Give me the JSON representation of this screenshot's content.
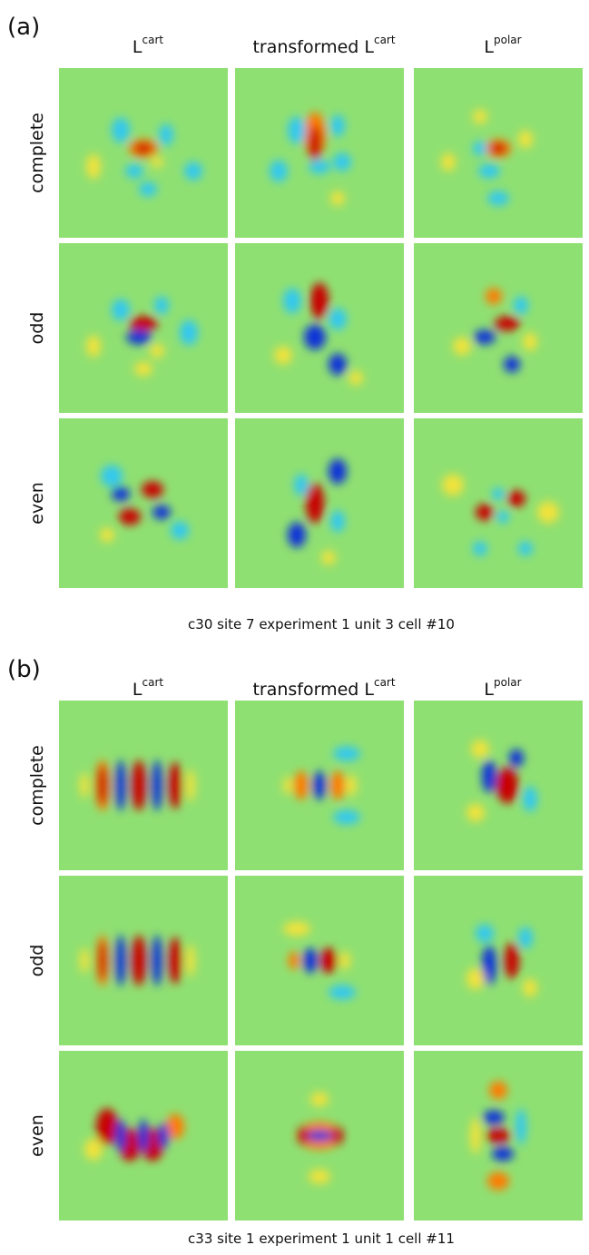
{
  "panels": [
    {
      "label": "(a)",
      "columns": [
        {
          "base": "L",
          "sup": "cart"
        },
        {
          "base": "transformed L",
          "sup": "cart"
        },
        {
          "base": "L",
          "sup": "polar"
        }
      ],
      "rows": [
        "complete",
        "odd",
        "even"
      ],
      "caption": "c30 site 7 experiment 1 unit 3 cell #10"
    },
    {
      "label": "(b)",
      "columns": [
        {
          "base": "L",
          "sup": "cart"
        },
        {
          "base": "transformed L",
          "sup": "cart"
        },
        {
          "base": "L",
          "sup": "polar"
        }
      ],
      "rows": [
        "complete",
        "odd",
        "even"
      ],
      "caption": "c33 site 1 experiment 1 unit 1 cell #11"
    }
  ]
}
